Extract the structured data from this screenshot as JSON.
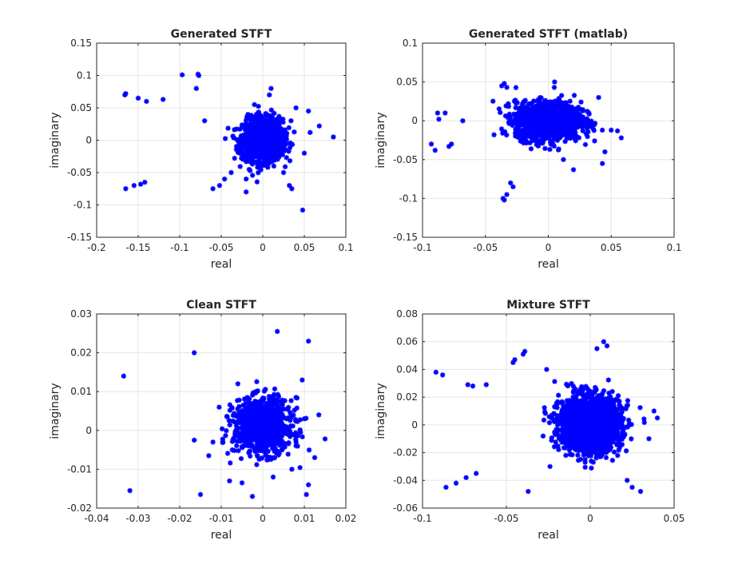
{
  "chart_data": [
    {
      "type": "scatter",
      "title": "Generated STFT",
      "xlabel": "real",
      "ylabel": "imaginary",
      "xlim": [
        -0.2,
        0.1
      ],
      "ylim": [
        -0.15,
        0.15
      ],
      "xticks": [
        "-0.2",
        "-0.15",
        "-0.1",
        "-0.05",
        "0",
        "0.05",
        "0.1"
      ],
      "yticks": [
        "-0.15",
        "-0.1",
        "-0.05",
        "0",
        "0.05",
        "0.1",
        "0.15"
      ],
      "grid": true,
      "marker": "asterisk",
      "color": "#0000ff",
      "cluster": {
        "center": [
          0.0,
          0.0
        ],
        "spread": [
          0.012,
          0.016
        ],
        "count": 1400
      },
      "x": [
        -0.165,
        -0.166,
        -0.15,
        -0.14,
        -0.12,
        -0.097,
        -0.078,
        -0.077,
        -0.08,
        -0.165,
        -0.155,
        -0.147,
        -0.142,
        -0.07,
        -0.06,
        -0.052,
        -0.046,
        -0.038,
        -0.02,
        0.01,
        0.008,
        0.032,
        0.035,
        0.048,
        0.057,
        0.068,
        0.085,
        0.055,
        0.04,
        0.05,
        0.025,
        -0.02,
        -0.01,
        0.034
      ],
      "y": [
        0.072,
        0.07,
        0.065,
        0.06,
        0.063,
        0.101,
        0.102,
        0.1,
        0.08,
        -0.075,
        -0.07,
        -0.068,
        -0.065,
        0.03,
        -0.075,
        -0.07,
        -0.06,
        -0.05,
        -0.08,
        0.08,
        0.07,
        -0.07,
        -0.075,
        -0.108,
        0.012,
        0.022,
        0.005,
        0.045,
        0.05,
        -0.02,
        -0.05,
        -0.06,
        0.055,
        0.03
      ]
    },
    {
      "type": "scatter",
      "title": "Generated STFT (matlab)",
      "xlabel": "real",
      "ylabel": "imaginary",
      "xlim": [
        -0.1,
        0.1
      ],
      "ylim": [
        -0.15,
        0.1
      ],
      "xticks": [
        "-0.1",
        "-0.05",
        "0",
        "0.05",
        "0.1"
      ],
      "yticks": [
        "-0.15",
        "-0.1",
        "-0.05",
        "0",
        "0.05",
        "0.1"
      ],
      "grid": true,
      "marker": "asterisk",
      "color": "#0000ff",
      "cluster": {
        "center": [
          0.0,
          0.0
        ],
        "spread": [
          0.013,
          0.012
        ],
        "count": 1400
      },
      "x": [
        -0.093,
        -0.09,
        -0.088,
        -0.087,
        -0.082,
        -0.079,
        -0.077,
        -0.068,
        -0.036,
        -0.035,
        -0.033,
        -0.03,
        -0.028,
        -0.037,
        -0.035,
        -0.033,
        0.005,
        0.012,
        0.02,
        0.043,
        0.045,
        0.05,
        0.055,
        0.058,
        0.04
      ],
      "y": [
        -0.03,
        -0.038,
        0.01,
        0.002,
        0.01,
        -0.033,
        -0.03,
        0.0,
        -0.1,
        -0.102,
        -0.095,
        -0.08,
        -0.085,
        0.045,
        0.048,
        0.043,
        0.05,
        -0.05,
        -0.063,
        -0.055,
        -0.04,
        -0.012,
        -0.013,
        -0.022,
        0.03
      ]
    },
    {
      "type": "scatter",
      "title": "Clean STFT",
      "xlabel": "real",
      "ylabel": "imaginary",
      "xlim": [
        -0.04,
        0.02
      ],
      "ylim": [
        -0.02,
        0.03
      ],
      "xticks": [
        "-0.04",
        "-0.03",
        "-0.02",
        "-0.01",
        "0",
        "0.01",
        "0.02"
      ],
      "yticks": [
        "-0.02",
        "-0.01",
        "0",
        "0.01",
        "0.02",
        "0.03"
      ],
      "grid": true,
      "marker": "asterisk",
      "color": "#0000ff",
      "cluster": {
        "center": [
          0.0,
          0.001
        ],
        "spread": [
          0.0035,
          0.0035
        ],
        "count": 900
      },
      "x": [
        -0.0335,
        -0.032,
        -0.0165,
        -0.0165,
        -0.015,
        -0.013,
        -0.0105,
        -0.008,
        -0.005,
        -0.0025,
        0.0035,
        0.011,
        0.011,
        0.0105,
        0.008,
        0.0125,
        0.0095,
        0.01,
        -0.006,
        -0.012,
        0.0135,
        0.007,
        0.0025
      ],
      "y": [
        0.014,
        -0.0155,
        0.02,
        -0.0025,
        -0.0165,
        -0.0065,
        0.006,
        -0.013,
        -0.0135,
        -0.017,
        0.0255,
        0.023,
        -0.014,
        -0.0165,
        0.0085,
        -0.007,
        0.013,
        0.003,
        0.012,
        -0.003,
        0.004,
        -0.01,
        -0.012
      ]
    },
    {
      "type": "scatter",
      "title": "Mixture STFT",
      "xlabel": "real",
      "ylabel": "imaginary",
      "xlim": [
        -0.1,
        0.05
      ],
      "ylim": [
        -0.06,
        0.08
      ],
      "xticks": [
        "-0.1",
        "-0.05",
        "0",
        "0.05"
      ],
      "yticks": [
        "-0.06",
        "-0.04",
        "-0.02",
        "0",
        "0.02",
        "0.04",
        "0.06",
        "0.08"
      ],
      "grid": true,
      "marker": "asterisk",
      "color": "#0000ff",
      "cluster": {
        "center": [
          0.0,
          0.001
        ],
        "spread": [
          0.009,
          0.0095
        ],
        "count": 2000
      },
      "x": [
        -0.092,
        -0.088,
        -0.086,
        -0.08,
        -0.074,
        -0.073,
        -0.07,
        -0.068,
        -0.062,
        -0.046,
        -0.045,
        -0.04,
        -0.039,
        -0.037,
        -0.026,
        -0.024,
        0.004,
        0.008,
        0.01,
        0.022,
        0.025,
        0.03,
        0.035,
        0.04,
        0.038
      ],
      "y": [
        0.038,
        0.036,
        -0.045,
        -0.042,
        -0.038,
        0.029,
        0.028,
        -0.035,
        0.029,
        0.045,
        0.047,
        0.051,
        0.053,
        -0.048,
        0.04,
        -0.03,
        0.055,
        0.06,
        0.057,
        -0.04,
        -0.045,
        -0.048,
        -0.01,
        0.005,
        0.01
      ]
    }
  ]
}
